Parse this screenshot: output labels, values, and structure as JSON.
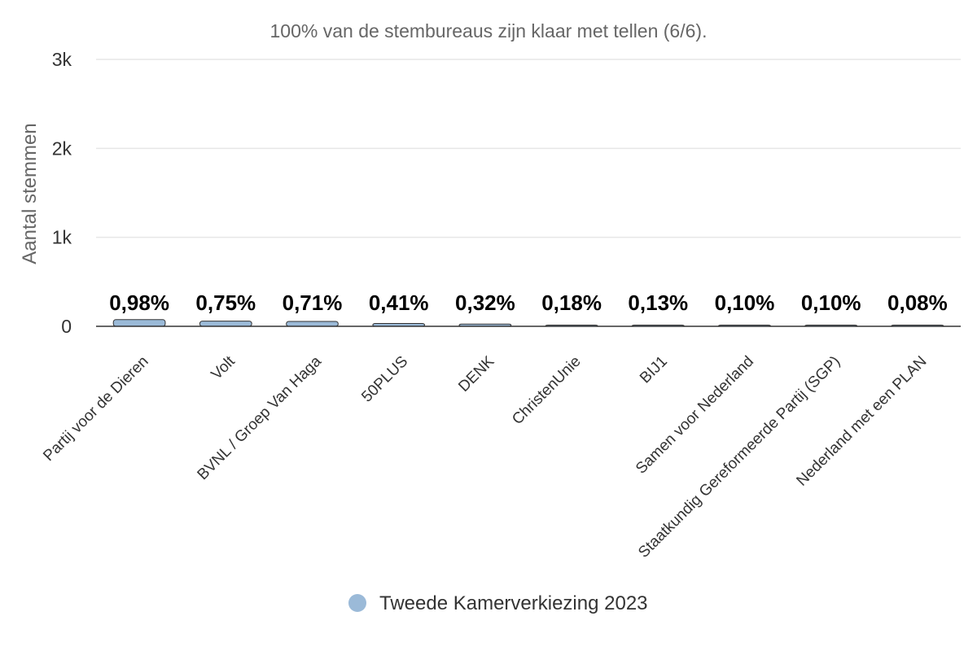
{
  "chart_data": {
    "type": "bar",
    "subtitle": "100% van de stembureaus zijn klaar met tellen (6/6).",
    "ylabel": "Aantal stemmen",
    "ylim": [
      0,
      3000
    ],
    "yticks": [
      0,
      1000,
      2000,
      3000
    ],
    "ytick_labels": [
      "0",
      "1k",
      "2k",
      "3k"
    ],
    "grid": true,
    "legend_position": "bottom-center",
    "categories": [
      "Partij voor de Dieren",
      "Volt",
      "BVNL / Groep Van Haga",
      "50PLUS",
      "DENK",
      "ChristenUnie",
      "BIJ1",
      "Samen voor Nederland",
      "Staatkundig Gereformeerde Partij (SGP)",
      "Nederland met een PLAN"
    ],
    "series": [
      {
        "name": "Tweede Kamerverkiezing 2023",
        "color": "#9bbad8",
        "values": [
          75,
          58,
          55,
          32,
          25,
          14,
          10,
          8,
          8,
          6
        ],
        "data_labels": [
          "0,98%",
          "0,75%",
          "0,71%",
          "0,41%",
          "0,32%",
          "0,18%",
          "0,13%",
          "0,10%",
          "0,10%",
          "0,08%"
        ]
      }
    ]
  }
}
